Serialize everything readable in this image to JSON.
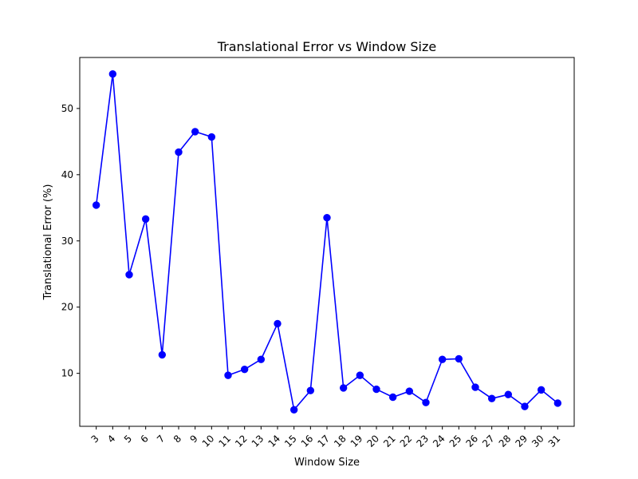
{
  "chart_data": {
    "type": "line",
    "title": "Translational Error vs Window Size",
    "xlabel": "Window Size",
    "ylabel": "Translational Error (%)",
    "x": [
      3,
      4,
      5,
      6,
      7,
      8,
      9,
      10,
      11,
      12,
      13,
      14,
      15,
      16,
      17,
      18,
      19,
      20,
      21,
      22,
      23,
      24,
      25,
      26,
      27,
      28,
      29,
      30,
      31
    ],
    "series": [
      {
        "values": [
          35.4,
          55.2,
          24.9,
          33.3,
          12.8,
          43.4,
          46.5,
          45.7,
          9.7,
          10.6,
          12.1,
          17.5,
          4.5,
          7.4,
          33.5,
          7.8,
          9.7,
          7.6,
          6.4,
          7.3,
          5.6,
          12.1,
          12.2,
          7.9,
          6.2,
          6.8,
          5.0,
          7.5,
          5.5
        ],
        "color": "#0000ff",
        "marker": "circle"
      }
    ],
    "xlim": [
      2,
      32
    ],
    "ylim": [
      2.0,
      57.7
    ],
    "yticks": [
      10,
      20,
      30,
      40,
      50
    ],
    "grid": false,
    "legend": "none"
  }
}
